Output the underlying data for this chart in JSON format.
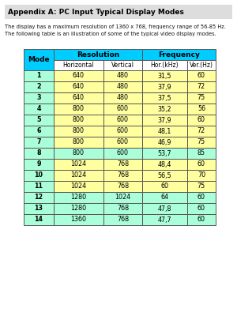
{
  "title": "Appendix A: PC Input Typical Display Modes",
  "subtitle_line1": "The display has a maximum resolution of 1360 x 768, frequency range of 56-85 Hz.",
  "subtitle_line2": "The following table is an illustration of some of the typical video display modes.",
  "rows": [
    [
      "1",
      "640",
      "480",
      "31,5",
      "60"
    ],
    [
      "2",
      "640",
      "480",
      "37,9",
      "72"
    ],
    [
      "3",
      "640",
      "480",
      "37,5",
      "75"
    ],
    [
      "4",
      "800",
      "600",
      "35,2",
      "56"
    ],
    [
      "5",
      "800",
      "600",
      "37,9",
      "60"
    ],
    [
      "6",
      "800",
      "600",
      "48,1",
      "72"
    ],
    [
      "7",
      "800",
      "600",
      "46,9",
      "75"
    ],
    [
      "8",
      "800",
      "600",
      "53,7",
      "85"
    ],
    [
      "9",
      "1024",
      "768",
      "48,4",
      "60"
    ],
    [
      "10",
      "1024",
      "768",
      "56,5",
      "70"
    ],
    [
      "11",
      "1024",
      "768",
      "60",
      "75"
    ],
    [
      "12",
      "1280",
      "1024",
      "64",
      "60"
    ],
    [
      "13",
      "1280",
      "768",
      "47,8",
      "60"
    ],
    [
      "14",
      "1360",
      "768",
      "47,7",
      "60"
    ]
  ],
  "row_colors": [
    "#FFFFA0",
    "#FFFFA0",
    "#FFFFA0",
    "#FFFFA0",
    "#FFFFA0",
    "#FFFFA0",
    "#FFFFA0",
    "#AAFFD8",
    "#FFFFA0",
    "#FFFFA0",
    "#FFFFA0",
    "#AAFFD8",
    "#AAFFD8",
    "#AAFFD8"
  ],
  "header_row1_color": "#00CCFF",
  "header_row2_color": "#FFFFFF",
  "mode_col_header_color": "#00CCFF",
  "mode_col_color": "#AAFFD8",
  "bg_color": "#FFFFFF",
  "title_bg": "#DDDDDD",
  "border_color": "#555555"
}
